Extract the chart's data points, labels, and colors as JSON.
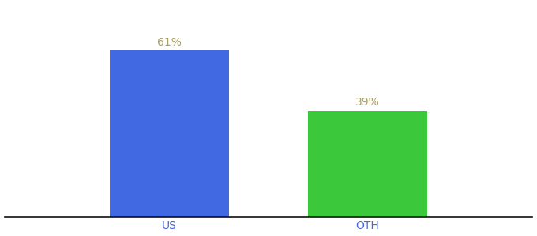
{
  "categories": [
    "US",
    "OTH"
  ],
  "values": [
    61,
    39
  ],
  "bar_colors": [
    "#4169e1",
    "#3bc83b"
  ],
  "label_color": "#aaa060",
  "label_fontsize": 10,
  "tick_color": "#4169e1",
  "xlabel_fontsize": 10,
  "background_color": "#ffffff",
  "ylim": [
    0,
    78
  ],
  "bar_width": 0.18,
  "x_positions": [
    0.35,
    0.65
  ]
}
